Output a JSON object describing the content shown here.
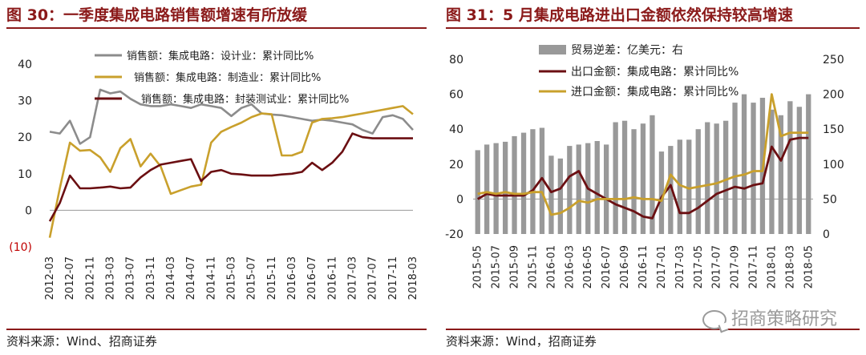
{
  "left": {
    "title": "图 30：一季度集成电路销售额增速有所放缓",
    "source": "资料来源：Wind、招商证券"
  },
  "right": {
    "title": "图 31：5 月集成电路进出口金额依然保持较高增速",
    "source": "资料来源：Wind，招商证券"
  },
  "watermark": "招商策略研究",
  "chart_data": [
    {
      "type": "line",
      "x": [
        "2012-03",
        "2012-05",
        "2012-07",
        "2012-09",
        "2012-11",
        "2013-01",
        "2013-03",
        "2013-05",
        "2013-07",
        "2013-09",
        "2013-11",
        "2014-01",
        "2014-03",
        "2014-05",
        "2014-07",
        "2014-09",
        "2014-11",
        "2015-01",
        "2015-03",
        "2015-05",
        "2015-07",
        "2015-09",
        "2015-11",
        "2016-01",
        "2016-03",
        "2016-05",
        "2016-07",
        "2016-09",
        "2016-11",
        "2017-01",
        "2017-03",
        "2017-05",
        "2017-07",
        "2017-09",
        "2017-11",
        "2018-01",
        "2018-03"
      ],
      "xticks": [
        "2012-03",
        "2012-07",
        "2012-11",
        "2013-03",
        "2013-07",
        "2013-11",
        "2014-03",
        "2014-07",
        "2014-11",
        "2015-03",
        "2015-07",
        "2015-11",
        "2016-03",
        "2016-07",
        "2016-11",
        "2017-03",
        "2017-07",
        "2017-11",
        "2018-03"
      ],
      "yticks": [
        "40",
        "30",
        "20",
        "10",
        "0",
        "(10)"
      ],
      "ylim": [
        -10,
        40
      ],
      "series": [
        {
          "name": "销售额：集成电路：设计业：累计同比%",
          "color": "#8c8c8c",
          "values": [
            21.5,
            21,
            24.5,
            18.2,
            20,
            33,
            32,
            32.5,
            30.5,
            29,
            28.5,
            28.5,
            29,
            28.5,
            28,
            29,
            28.5,
            28,
            25.8,
            28,
            29,
            26.5,
            26.2,
            26,
            25.5,
            25,
            24.5,
            24.8,
            24.5,
            24,
            23.5,
            22,
            21,
            25.5,
            26,
            25,
            22
          ]
        },
        {
          "name": "销售额：集成电路：制造业：累计同比%",
          "color": "#c9a02c",
          "values": [
            -7.5,
            6,
            18.5,
            16.3,
            16.5,
            14.5,
            10.5,
            17,
            19.5,
            12,
            15.5,
            12,
            4.5,
            5.5,
            6.5,
            7,
            18.5,
            21.5,
            22.8,
            24,
            25.5,
            26.5,
            26.3,
            15,
            15,
            16,
            24,
            25,
            25.2,
            25.5,
            26,
            26.5,
            27,
            27.5,
            28,
            28.5,
            26.3
          ]
        },
        {
          "name": "销售额：集成电路：封装测试业：累计同比%",
          "color": "#6b0f12",
          "values": [
            -3,
            2,
            9.5,
            6,
            6,
            6.2,
            6.5,
            6,
            6.2,
            9,
            11,
            12.5,
            13,
            13.5,
            14,
            8,
            10.5,
            11,
            10,
            9.8,
            9.5,
            9.5,
            9.5,
            9.8,
            10,
            10.5,
            13,
            11,
            13,
            16,
            21,
            20,
            19.7,
            19.7,
            19.7,
            19.7,
            19.7
          ]
        }
      ]
    },
    {
      "type": "bar+line",
      "x": [
        "2015-05",
        "2015-06",
        "2015-07",
        "2015-08",
        "2015-09",
        "2015-10",
        "2015-11",
        "2015-12",
        "2016-01",
        "2016-02",
        "2016-03",
        "2016-04",
        "2016-05",
        "2016-06",
        "2016-07",
        "2016-08",
        "2016-09",
        "2016-10",
        "2016-11",
        "2016-12",
        "2017-01",
        "2017-02",
        "2017-03",
        "2017-04",
        "2017-05",
        "2017-06",
        "2017-07",
        "2017-08",
        "2017-09",
        "2017-10",
        "2017-11",
        "2017-12",
        "2018-01",
        "2018-02",
        "2018-03",
        "2018-04",
        "2018-05"
      ],
      "xticks": [
        "2015-05",
        "2015-07",
        "2015-09",
        "2015-11",
        "2016-01",
        "2016-03",
        "2016-05",
        "2016-07",
        "2016-09",
        "2016-11",
        "2017-01",
        "2017-03",
        "2017-05",
        "2017-07",
        "2017-09",
        "2017-11",
        "2018-01",
        "2018-03",
        "2018-05"
      ],
      "yticks_left": [
        "80",
        "60",
        "40",
        "20",
        "0",
        "-20"
      ],
      "yticks_right": [
        "250",
        "200",
        "150",
        "100",
        "50",
        "0"
      ],
      "ylim_left": [
        -20,
        80
      ],
      "ylim_right": [
        0,
        250
      ],
      "bar_series": {
        "name": "贸易逆差：亿美元：右",
        "color": "#999999",
        "values": [
          120,
          128,
          130,
          132,
          140,
          145,
          150,
          152,
          112,
          108,
          126,
          128,
          130,
          133,
          128,
          160,
          162,
          150,
          158,
          170,
          118,
          126,
          135,
          135,
          150,
          160,
          158,
          162,
          188,
          200,
          188,
          195,
          178,
          170,
          190,
          182,
          200
        ]
      },
      "series": [
        {
          "name": "出口金额：集成电路：累计同比%",
          "color": "#6b0f12",
          "values": [
            0,
            3,
            2,
            2,
            2,
            2,
            5,
            12,
            4,
            6,
            13,
            16,
            6,
            3,
            0,
            -3,
            -5,
            -7,
            -10,
            -11,
            1,
            8,
            -8,
            -8,
            -5,
            -1,
            3,
            5,
            7,
            6,
            8,
            9,
            30,
            22,
            34,
            35,
            35
          ]
        },
        {
          "name": "进口金额：集成电路：累计同比%",
          "color": "#c9a02c",
          "values": [
            3,
            4,
            3,
            4,
            3,
            3,
            4,
            4,
            -9,
            -8,
            -5,
            -1,
            -2,
            0,
            0,
            0,
            0,
            1,
            0,
            0,
            -1,
            14,
            8,
            6,
            7,
            8,
            9,
            11,
            13,
            14,
            16,
            16,
            60,
            36,
            38,
            38,
            38
          ]
        }
      ]
    }
  ]
}
